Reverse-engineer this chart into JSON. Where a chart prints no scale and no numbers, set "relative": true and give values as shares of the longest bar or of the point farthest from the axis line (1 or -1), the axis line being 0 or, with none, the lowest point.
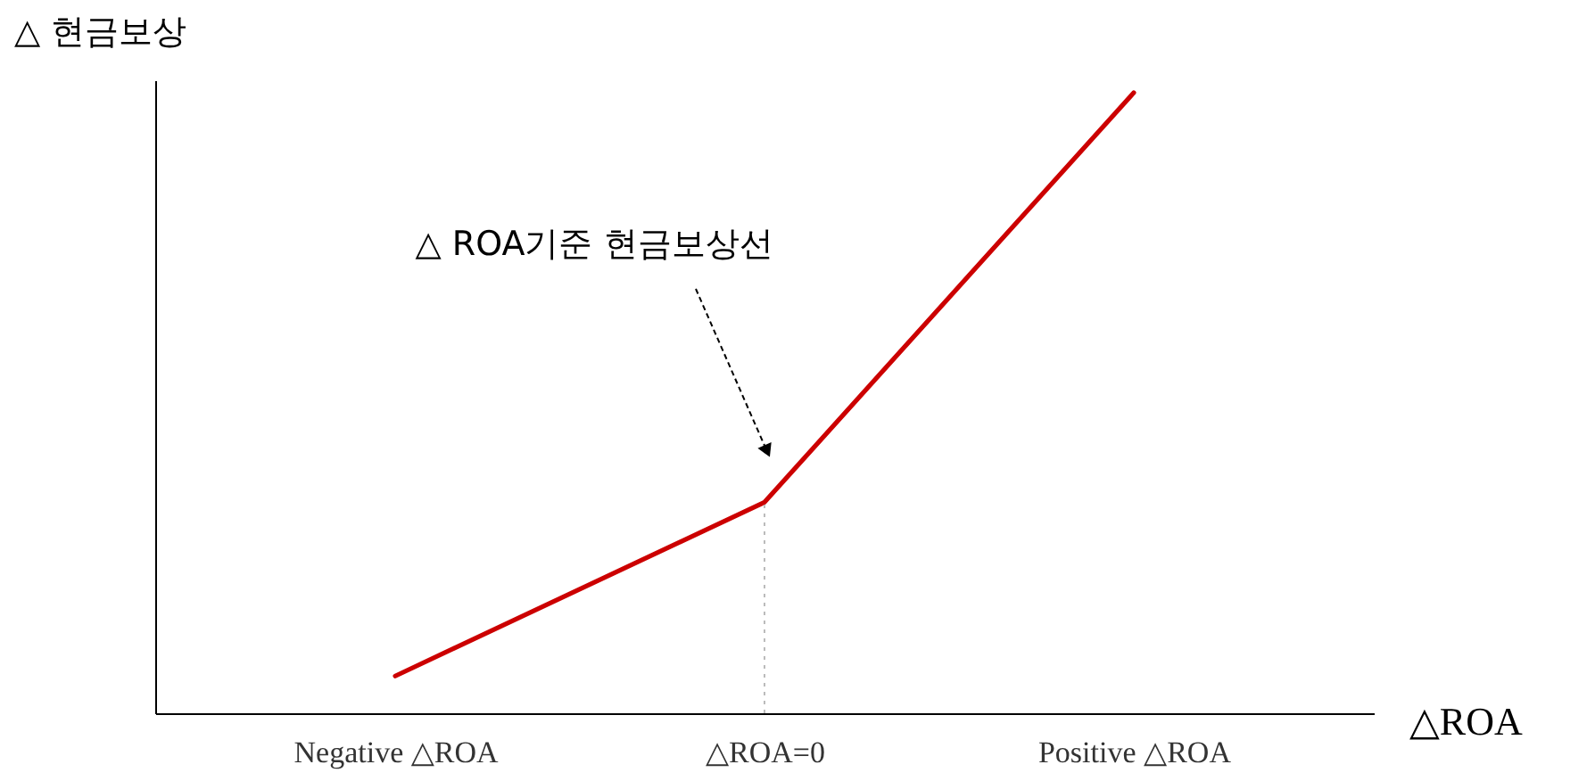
{
  "chart_data": {
    "type": "line",
    "relative": true,
    "categories": [
      "Negative △ROA",
      "△ROA=0",
      "Positive △ROA"
    ],
    "series": [
      {
        "color": "#cc0000",
        "values": [
          0.06,
          0.34,
          1
        ]
      }
    ],
    "ref_lines": [
      {
        "axis": "x",
        "value": "△ROA=0",
        "color": "#bbbbbb",
        "line_style": "dotted"
      }
    ],
    "annotations": [
      "△ 현금보상",
      "△ ROA기준 현금보상선",
      "△ROA"
    ],
    "marker": "none",
    "grid": false,
    "line_style": "solid"
  }
}
